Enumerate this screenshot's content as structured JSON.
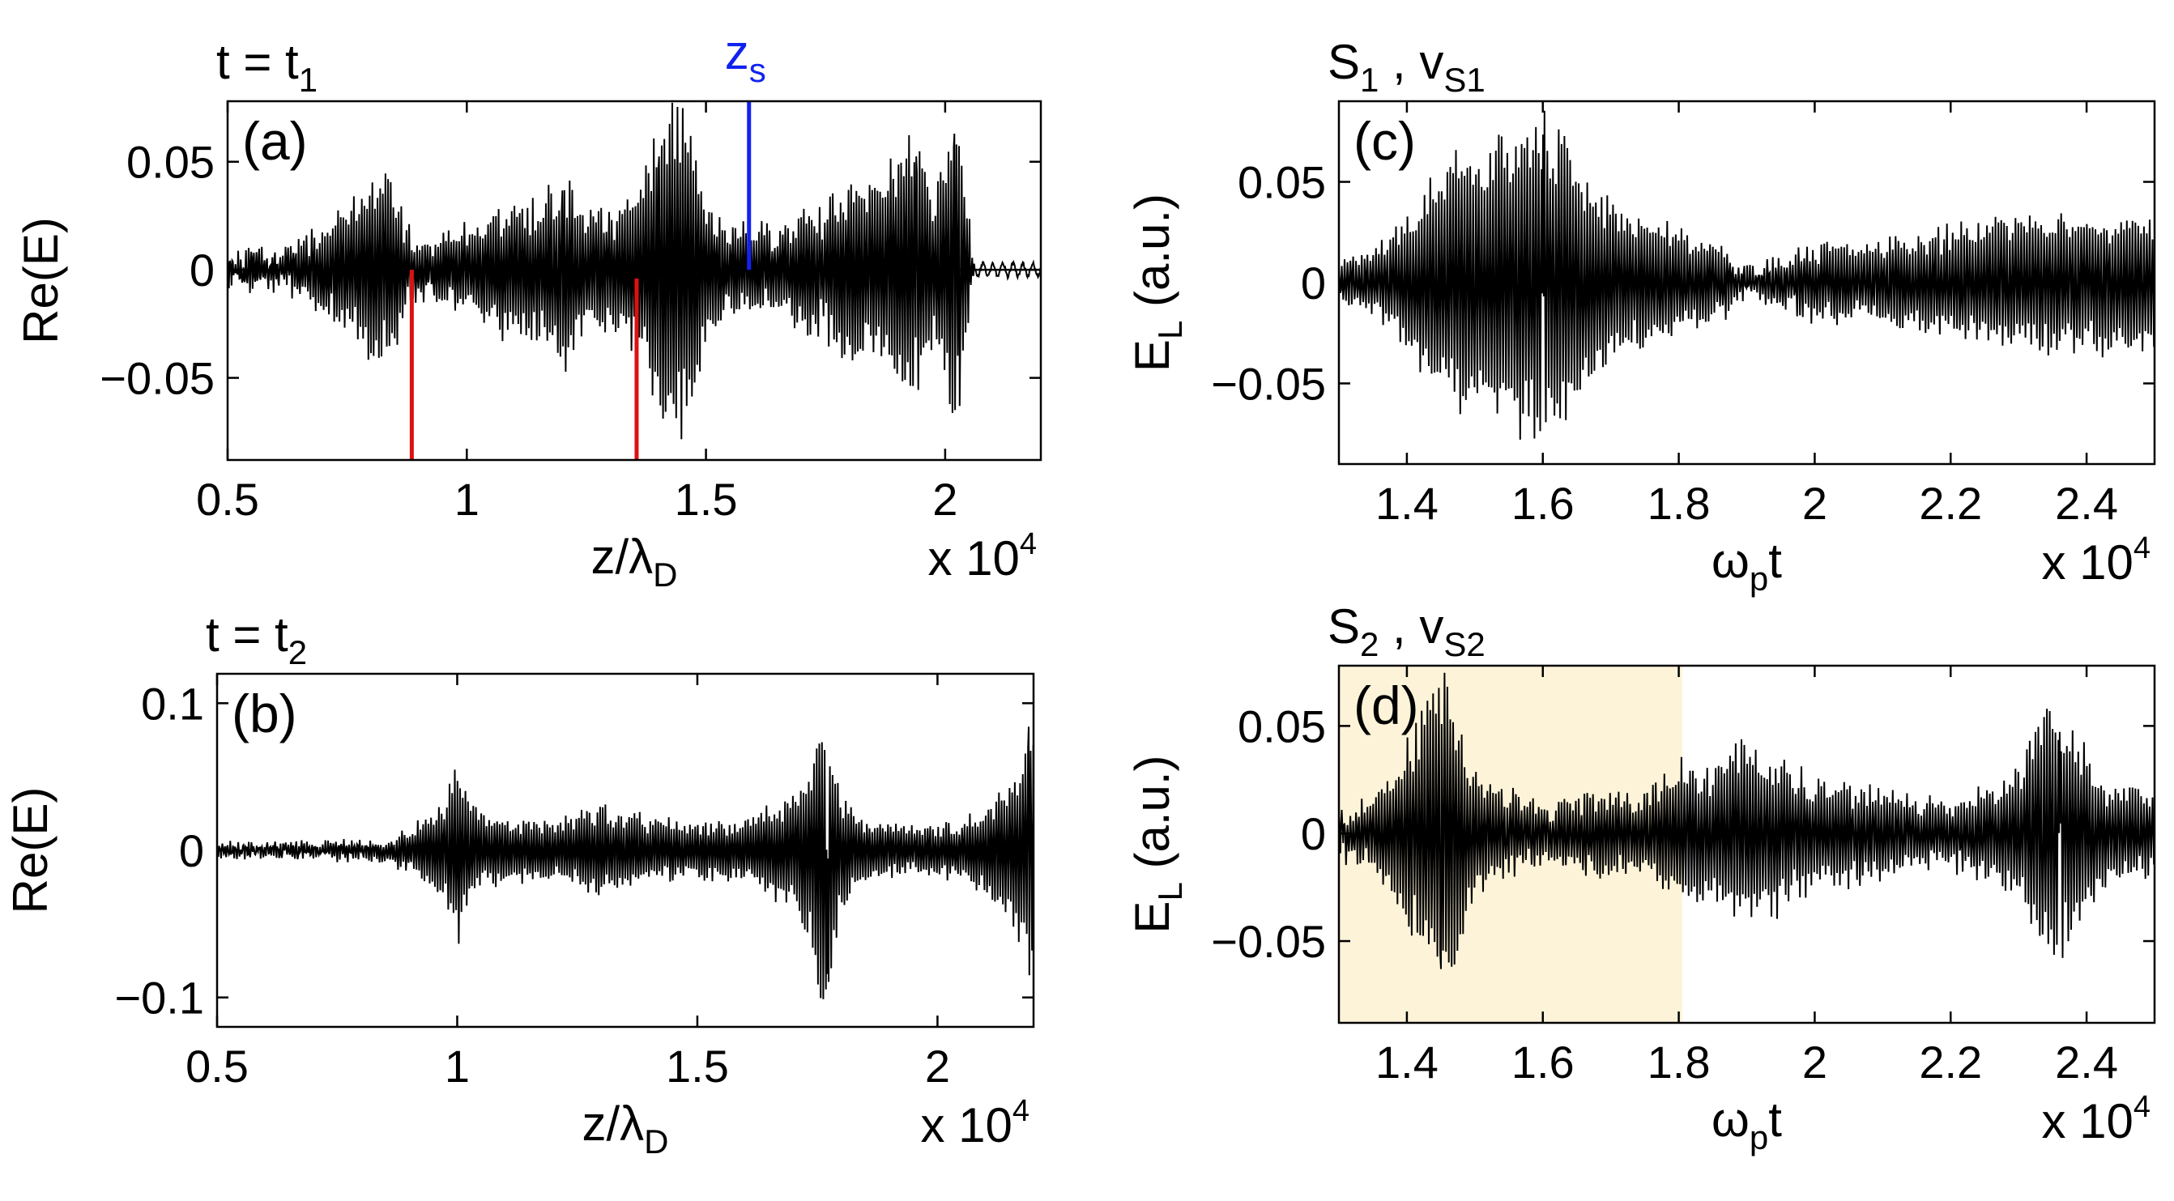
{
  "chart_data": [
    {
      "id": "a",
      "type": "line",
      "panel_label": "(a)",
      "title": "t = t",
      "title_sub": "1",
      "marker_label": "z",
      "marker_label_sub": "s",
      "ylabel": "Re(E)",
      "xlabel": "z/λ",
      "xlabel_sub": "D",
      "multiplier": "x 10",
      "multiplier_exp": "4",
      "xlim": [
        0.5,
        2.2
      ],
      "ylim": [
        -0.088,
        0.078
      ],
      "xticks": [
        0.5,
        1,
        1.5,
        2
      ],
      "xtick_labels": [
        "0.5",
        "1",
        "1.5",
        "2"
      ],
      "yticks": [
        0.05,
        0,
        -0.05
      ],
      "ytick_labels": [
        "0.05",
        "0",
        "−0.05"
      ],
      "zero_line": true,
      "vlines": [
        {
          "x": 0.885,
          "y0": -0.088,
          "y1": 0,
          "color": "#dd1111"
        },
        {
          "x": 1.355,
          "y0": -0.088,
          "y1": -0.004,
          "color": "#dd1111"
        },
        {
          "x": 1.59,
          "y0": 0,
          "y1": 0.078,
          "color": "#1122ee"
        }
      ],
      "signal": {
        "period": 0.0055,
        "noise": 0.005,
        "tail_from": 2.06,
        "envelope": [
          [
            0.5,
            0.006
          ],
          [
            0.6,
            0.008
          ],
          [
            0.65,
            0.012
          ],
          [
            0.7,
            0.02
          ],
          [
            0.75,
            0.03
          ],
          [
            0.8,
            0.042
          ],
          [
            0.83,
            0.045
          ],
          [
            0.86,
            0.03
          ],
          [
            0.89,
            0.012
          ],
          [
            0.92,
            0.01
          ],
          [
            0.95,
            0.015
          ],
          [
            1.0,
            0.018
          ],
          [
            1.05,
            0.025
          ],
          [
            1.1,
            0.035
          ],
          [
            1.15,
            0.03
          ],
          [
            1.18,
            0.04
          ],
          [
            1.2,
            0.05
          ],
          [
            1.22,
            0.035
          ],
          [
            1.25,
            0.025
          ],
          [
            1.3,
            0.028
          ],
          [
            1.33,
            0.035
          ],
          [
            1.36,
            0.04
          ],
          [
            1.4,
            0.065
          ],
          [
            1.43,
            0.075
          ],
          [
            1.46,
            0.08
          ],
          [
            1.48,
            0.06
          ],
          [
            1.5,
            0.03
          ],
          [
            1.55,
            0.018
          ],
          [
            1.6,
            0.02
          ],
          [
            1.65,
            0.018
          ],
          [
            1.7,
            0.025
          ],
          [
            1.75,
            0.03
          ],
          [
            1.8,
            0.042
          ],
          [
            1.83,
            0.035
          ],
          [
            1.86,
            0.045
          ],
          [
            1.9,
            0.055
          ],
          [
            1.93,
            0.06
          ],
          [
            1.96,
            0.05
          ],
          [
            1.98,
            0.035
          ],
          [
            2.0,
            0.05
          ],
          [
            2.02,
            0.075
          ],
          [
            2.04,
            0.04
          ],
          [
            2.06,
            0.008
          ],
          [
            2.2,
            0.004
          ]
        ],
        "features": [
          [
            1.2,
            0.035
          ],
          [
            1.4,
            0.045
          ],
          [
            1.46,
            -0.06
          ],
          [
            1.94,
            0.05
          ],
          [
            2.02,
            0.06
          ],
          [
            2.03,
            -0.06
          ]
        ]
      }
    },
    {
      "id": "b",
      "type": "line",
      "panel_label": "(b)",
      "title": "t = t",
      "title_sub": "2",
      "ylabel": "Re(E)",
      "xlabel": "z/λ",
      "xlabel_sub": "D",
      "multiplier": "x 10",
      "multiplier_exp": "4",
      "xlim": [
        0.5,
        2.2
      ],
      "ylim": [
        -0.12,
        0.12
      ],
      "xticks": [
        0.5,
        1,
        1.5,
        2
      ],
      "xtick_labels": [
        "0.5",
        "1",
        "1.5",
        "2"
      ],
      "yticks": [
        0.1,
        0,
        -0.1
      ],
      "ytick_labels": [
        "0.1",
        "0",
        "−0.1"
      ],
      "zero_line": false,
      "vlines": [],
      "signal": {
        "period": 0.0055,
        "noise": 0.003,
        "envelope": [
          [
            0.5,
            0.004
          ],
          [
            0.85,
            0.006
          ],
          [
            0.9,
            0.015
          ],
          [
            0.95,
            0.025
          ],
          [
            0.98,
            0.04
          ],
          [
            1.0,
            0.065
          ],
          [
            1.02,
            0.04
          ],
          [
            1.05,
            0.025
          ],
          [
            1.2,
            0.02
          ],
          [
            1.3,
            0.03
          ],
          [
            1.35,
            0.025
          ],
          [
            1.5,
            0.018
          ],
          [
            1.6,
            0.02
          ],
          [
            1.7,
            0.04
          ],
          [
            1.74,
            0.07
          ],
          [
            1.76,
            0.11
          ],
          [
            1.78,
            0.08
          ],
          [
            1.8,
            0.04
          ],
          [
            1.85,
            0.02
          ],
          [
            1.95,
            0.015
          ],
          [
            2.05,
            0.02
          ],
          [
            2.1,
            0.03
          ],
          [
            2.15,
            0.045
          ],
          [
            2.18,
            0.07
          ],
          [
            2.2,
            0.11
          ]
        ],
        "features": [
          [
            1.0,
            0.045
          ],
          [
            1.76,
            0.07
          ],
          [
            1.77,
            -0.08
          ],
          [
            2.19,
            0.08
          ]
        ]
      }
    },
    {
      "id": "c",
      "type": "line",
      "panel_label": "(c)",
      "title": "S",
      "title_sub": "1",
      "title_mid": " , v",
      "title_sub2": "S1",
      "ylabel": "E",
      "ylabel_sub": "L",
      "ylabel_rest": " (a.u.)",
      "xlabel": "ω",
      "xlabel_sub": "p",
      "xlabel_rest": "t",
      "multiplier": "x 10",
      "multiplier_exp": "4",
      "xlim": [
        1.3,
        2.5
      ],
      "ylim": [
        -0.09,
        0.09
      ],
      "xticks": [
        1.4,
        1.6,
        1.8,
        2,
        2.2,
        2.4
      ],
      "xtick_labels": [
        "1.4",
        "1.6",
        "1.8",
        "2",
        "2.2",
        "2.4"
      ],
      "yticks": [
        0.05,
        0,
        -0.05
      ],
      "ytick_labels": [
        "0.05",
        "0",
        "−0.05"
      ],
      "zero_line": false,
      "vlines": [],
      "signal": {
        "period": 0.0042,
        "noise": 0.004,
        "envelope": [
          [
            1.3,
            0.012
          ],
          [
            1.35,
            0.015
          ],
          [
            1.38,
            0.025
          ],
          [
            1.42,
            0.045
          ],
          [
            1.46,
            0.06
          ],
          [
            1.5,
            0.07
          ],
          [
            1.55,
            0.075
          ],
          [
            1.6,
            0.085
          ],
          [
            1.63,
            0.075
          ],
          [
            1.66,
            0.055
          ],
          [
            1.7,
            0.04
          ],
          [
            1.75,
            0.03
          ],
          [
            1.8,
            0.025
          ],
          [
            1.85,
            0.02
          ],
          [
            1.9,
            0.006
          ],
          [
            1.95,
            0.012
          ],
          [
            2.0,
            0.018
          ],
          [
            2.1,
            0.02
          ],
          [
            2.2,
            0.028
          ],
          [
            2.3,
            0.035
          ],
          [
            2.35,
            0.032
          ],
          [
            2.45,
            0.035
          ],
          [
            2.5,
            0.03
          ]
        ],
        "features": [
          [
            1.6,
            0.07
          ]
        ]
      }
    },
    {
      "id": "d",
      "type": "line",
      "panel_label": "(d)",
      "title": "S",
      "title_sub": "2",
      "title_mid": " , v",
      "title_sub2": "S2",
      "ylabel": "E",
      "ylabel_sub": "L",
      "ylabel_rest": " (a.u.)",
      "xlabel": "ω",
      "xlabel_sub": "p",
      "xlabel_rest": "t",
      "multiplier": "x 10",
      "multiplier_exp": "4",
      "xlim": [
        1.3,
        2.5
      ],
      "ylim": [
        -0.088,
        0.078
      ],
      "xticks": [
        1.4,
        1.6,
        1.8,
        2,
        2.2,
        2.4
      ],
      "xtick_labels": [
        "1.4",
        "1.6",
        "1.8",
        "2",
        "2.2",
        "2.4"
      ],
      "yticks": [
        0.05,
        0,
        -0.05
      ],
      "ytick_labels": [
        "0.05",
        "0",
        "−0.05"
      ],
      "zero_line": false,
      "highlight": {
        "x0": 1.3,
        "x1": 1.805,
        "color": "#fcf3d8"
      },
      "vlines": [],
      "signal": {
        "period": 0.0042,
        "noise": 0.004,
        "envelope": [
          [
            1.3,
            0.01
          ],
          [
            1.35,
            0.015
          ],
          [
            1.38,
            0.03
          ],
          [
            1.41,
            0.05
          ],
          [
            1.44,
            0.07
          ],
          [
            1.46,
            0.075
          ],
          [
            1.48,
            0.05
          ],
          [
            1.5,
            0.03
          ],
          [
            1.55,
            0.02
          ],
          [
            1.6,
            0.012
          ],
          [
            1.65,
            0.018
          ],
          [
            1.7,
            0.02
          ],
          [
            1.75,
            0.018
          ],
          [
            1.8,
            0.035
          ],
          [
            1.85,
            0.03
          ],
          [
            1.9,
            0.045
          ],
          [
            1.95,
            0.035
          ],
          [
            2.0,
            0.025
          ],
          [
            2.1,
            0.02
          ],
          [
            2.2,
            0.015
          ],
          [
            2.28,
            0.025
          ],
          [
            2.32,
            0.045
          ],
          [
            2.35,
            0.065
          ],
          [
            2.38,
            0.05
          ],
          [
            2.42,
            0.025
          ],
          [
            2.5,
            0.02
          ]
        ],
        "features": [
          [
            1.45,
            -0.06
          ],
          [
            2.36,
            0.045
          ]
        ]
      }
    }
  ]
}
